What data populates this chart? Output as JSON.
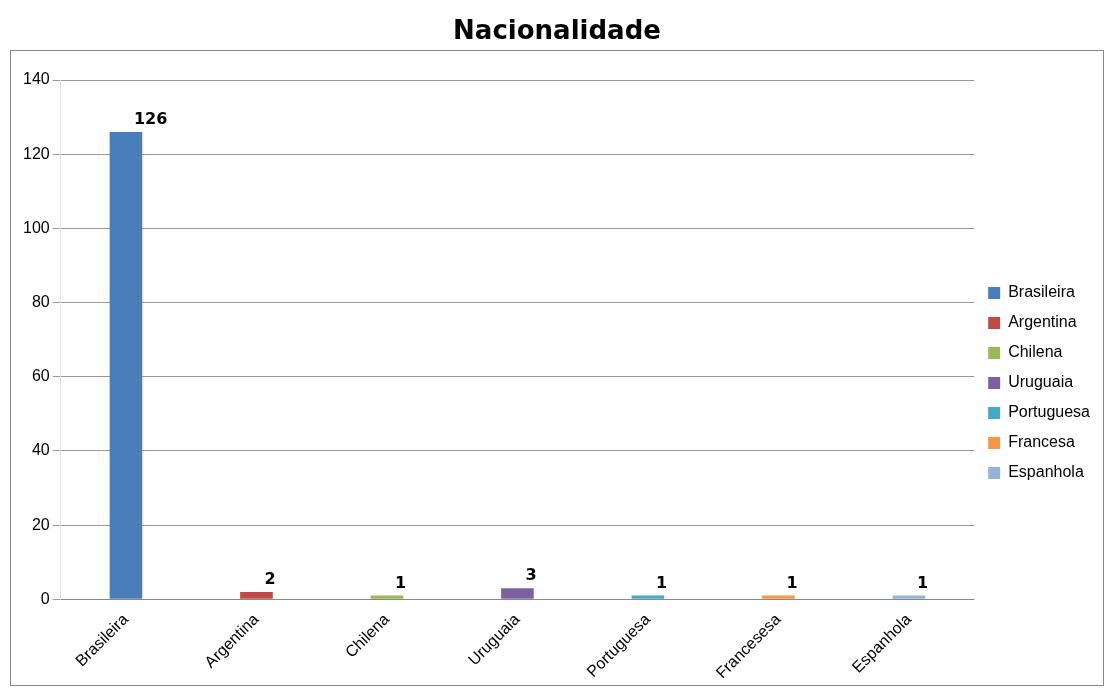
{
  "chart_data": {
    "type": "bar",
    "title": "Nacionalidade",
    "categories": [
      "Brasileira",
      "Argentina",
      "Chilena",
      "Uruguaia",
      "Portuguesa",
      "Francesesa",
      "Espanhola"
    ],
    "series": [
      {
        "name": "Brasileira",
        "color": "#4a7ebb",
        "values": [
          126,
          null,
          null,
          null,
          null,
          null,
          null
        ]
      },
      {
        "name": "Argentina",
        "color": "#be4b48",
        "values": [
          null,
          2,
          null,
          null,
          null,
          null,
          null
        ]
      },
      {
        "name": "Chilena",
        "color": "#98b954",
        "values": [
          null,
          null,
          1,
          null,
          null,
          null,
          null
        ]
      },
      {
        "name": "Uruguaia",
        "color": "#7d60a0",
        "values": [
          null,
          null,
          null,
          3,
          null,
          null,
          null
        ]
      },
      {
        "name": "Portuguesa",
        "color": "#46aac5",
        "values": [
          null,
          null,
          null,
          null,
          1,
          null,
          null
        ]
      },
      {
        "name": "Francesa",
        "color": "#f79646",
        "values": [
          null,
          null,
          null,
          null,
          null,
          1,
          null
        ]
      },
      {
        "name": "Espanhola",
        "color": "#95b3d7",
        "values": [
          null,
          null,
          null,
          null,
          null,
          null,
          1
        ]
      }
    ],
    "ylim": [
      0,
      140
    ],
    "yticks": [
      0,
      20,
      40,
      60,
      80,
      100,
      120,
      140
    ],
    "grid": "y",
    "legend": "right",
    "data_labels": true
  }
}
